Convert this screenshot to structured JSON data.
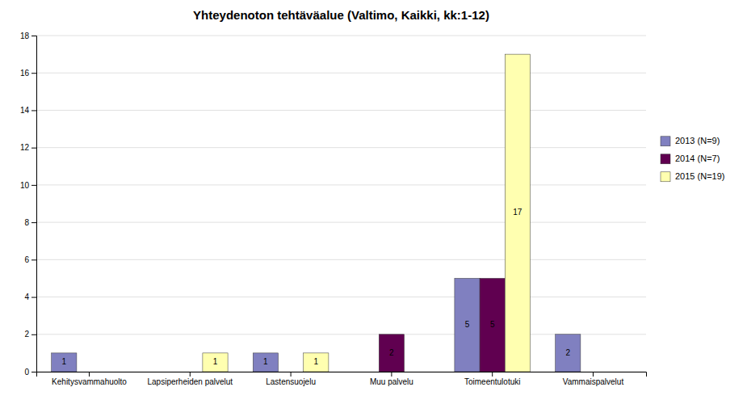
{
  "chart_data": {
    "type": "bar",
    "title": "Yhteydenoton tehtäväalue (Valtimo, Kaikki, kk:1-12)",
    "categories": [
      "Kehitysvammahuolto",
      "Lapsiperheiden palvelut",
      "Lastensuojelu",
      "Muu palvelu",
      "Toimeentulotuki",
      "Vammaispalvelut"
    ],
    "series": [
      {
        "name": "2013 (N=9)",
        "color": "#8080C0",
        "values": [
          1,
          0,
          1,
          0,
          5,
          2
        ]
      },
      {
        "name": "2014 (N=7)",
        "color": "#600050",
        "values": [
          0,
          0,
          0,
          2,
          5,
          0
        ]
      },
      {
        "name": "2015 (N=19)",
        "color": "#FFFFB0",
        "values": [
          0,
          1,
          1,
          0,
          17,
          0
        ]
      }
    ],
    "ylim": [
      0,
      18
    ],
    "yticks": [
      0,
      2,
      4,
      6,
      8,
      10,
      12,
      14,
      16,
      18
    ],
    "grid": true,
    "legend": "right",
    "data_labels": true
  }
}
